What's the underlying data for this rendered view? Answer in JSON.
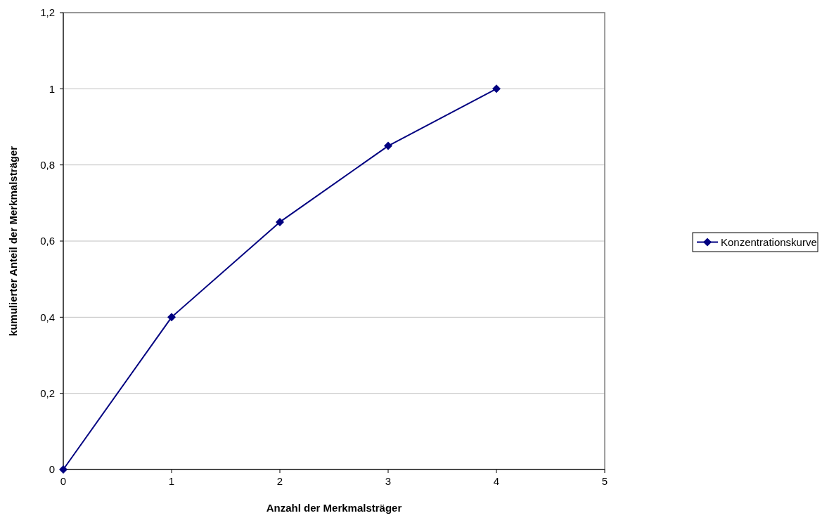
{
  "chart_data": {
    "type": "line",
    "xlabel": "Anzahl der Merkmalsträger",
    "ylabel": "kumulierter Anteil der Merkmalsträger",
    "x": [
      0,
      1,
      2,
      3,
      4
    ],
    "series": [
      {
        "name": "Konzentrationskurve",
        "color": "#000080",
        "values": [
          0,
          0.4,
          0.65,
          0.85,
          1
        ]
      }
    ],
    "xlim": [
      0,
      5
    ],
    "xticks": [
      0,
      1,
      2,
      3,
      4,
      5
    ],
    "ylim": [
      0,
      1.2
    ],
    "yticks": [
      0,
      {
        "value": 0.2,
        "label": "0,2"
      },
      {
        "value": 0.4,
        "label": "0,4"
      },
      {
        "value": 0.6,
        "label": "0,6"
      },
      {
        "value": 0.8,
        "label": "0,8"
      },
      1,
      {
        "value": 1.2,
        "label": "1,2"
      }
    ],
    "grid": "y",
    "legend": "right",
    "marker": "diamond",
    "line_style": "solid"
  }
}
